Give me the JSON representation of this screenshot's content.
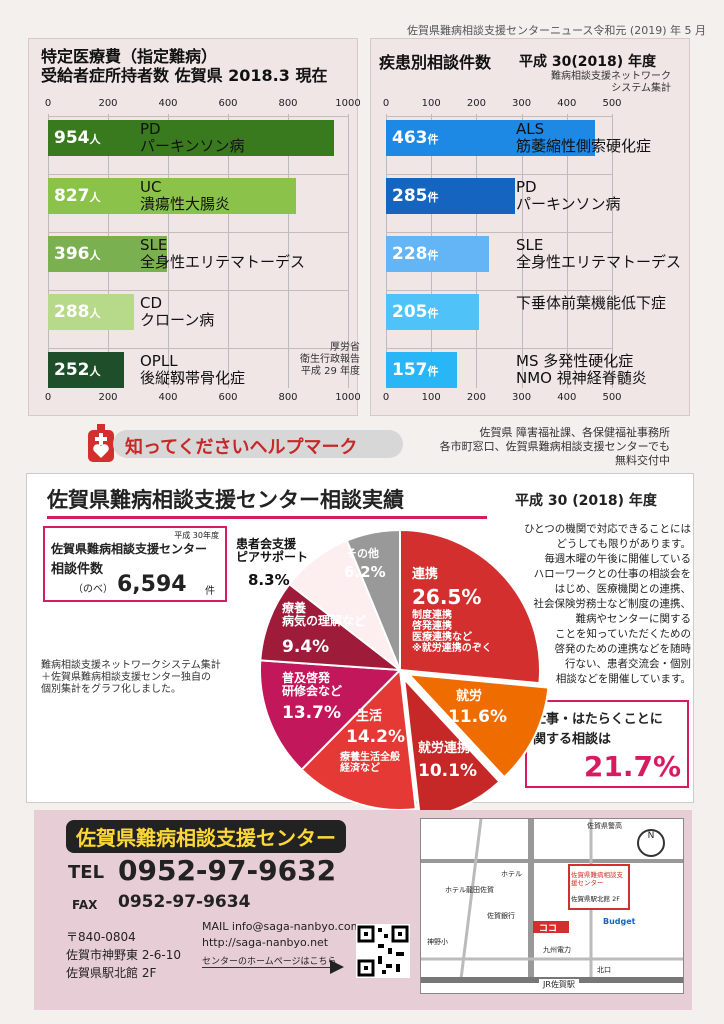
{
  "header": {
    "newsletter": "佐賀県難病相談支援センターニュース令和元 (2019) 年 5 月"
  },
  "left_chart": {
    "title_line1": "特定医療費（指定難病）",
    "title_line2": "受給者症所持者数 佐賀県 2018.3 現在",
    "source": [
      "厚労省",
      "衛生行政報告",
      "平成 29 年度"
    ],
    "unit": "人",
    "ticks": [
      "0",
      "200",
      "400",
      "600",
      "800",
      "1000"
    ],
    "max": 1000,
    "colors": [
      "#3a7a1e",
      "#8bc34a",
      "#7bb050",
      "#b7d98a",
      "#1f4f2a"
    ]
  },
  "right_chart": {
    "title": "疾患別相談件数",
    "subtitle": "平成 30(2018) 年度",
    "source": [
      "難病相談支援ネットワーク",
      "システム集計"
    ],
    "unit": "件",
    "ticks": [
      "0",
      "100",
      "200",
      "300",
      "400",
      "500"
    ],
    "max": 500,
    "colors": [
      "#1e88e5",
      "#1565c0",
      "#64b5f6",
      "#4fc3f7",
      "#29b6f6"
    ]
  },
  "chart_data": [
    {
      "type": "bar",
      "title": "特定医療費（指定難病）受給者症所持者数",
      "categories": [
        "PD パーキンソン病",
        "UC 潰瘍性大腸炎",
        "SLE 全身性エリテマトーデス",
        "CD クローン病",
        "OPLL 後縦靱帯骨化症"
      ],
      "labels_abbr": [
        "PD",
        "UC",
        "SLE",
        "CD",
        "OPLL"
      ],
      "labels_full": [
        "パーキンソン病",
        "潰瘍性大腸炎",
        "全身性エリテマトーデス",
        "クローン病",
        "後縦靱帯骨化症"
      ],
      "values": [
        954,
        827,
        396,
        288,
        252
      ],
      "xlim": [
        0,
        1000
      ]
    },
    {
      "type": "bar",
      "title": "疾患別相談件数",
      "categories": [
        "ALS 筋萎縮性側索硬化症",
        "PD パーキンソン病",
        "SLE 全身性エリテマトーデス",
        "下垂体前葉機能低下症",
        "MS 多発性硬化症 NMO 視神経脊髄炎"
      ],
      "labels_line1": [
        "ALS",
        "PD",
        "SLE",
        "下垂体前葉機能低下症",
        "MS 多発性硬化症"
      ],
      "labels_line2": [
        "筋萎縮性側索硬化症",
        "パーキンソン病",
        "全身性エリテマトーデス",
        "",
        "NMO 視神経脊髄炎"
      ],
      "values": [
        463,
        285,
        228,
        205,
        157
      ],
      "xlim": [
        0,
        500
      ]
    },
    {
      "type": "pie",
      "title": "佐賀県難病相談支援センター相談実績",
      "categories": [
        "連携",
        "就労",
        "就労連携",
        "生活",
        "普及啓発 研修会など",
        "療養 病気の理解など",
        "患者会支援 ピアサポート",
        "その他"
      ],
      "values": [
        26.5,
        11.6,
        10.1,
        14.2,
        13.7,
        9.4,
        8.3,
        6.2
      ]
    }
  ],
  "help_mark": {
    "title": "知ってくださいヘルプマーク",
    "info": [
      "佐賀県 障害福祉課、各保健福祉事務所",
      "各市町窓口、佐賀県難病相談支援センターでも",
      "無料交付中"
    ]
  },
  "results": {
    "title": "佐賀県難病相談支援センター相談実績",
    "year": "平成 30 (2018) 年度",
    "box_year": "平成 30年度",
    "box_line1": "佐賀県難病相談支援センター",
    "box_line2": "相談件数",
    "box_prefix": "（のべ）",
    "box_count": "6,594",
    "box_unit": "件",
    "note": [
      "難病相談支援ネットワークシステム集計",
      "＋佐賀県難病相談支援センター独自の",
      "個別集計をグラフ化しました。"
    ],
    "desc": [
      "ひとつの機関で対応できることには",
      "どうしても限りがあります。",
      "毎週木曜の午後に開催している",
      "ハローワークとの仕事の相談会を",
      "はじめ、医療機関との連携、",
      "社会保険労務士など制度の連携、",
      "難病やセンターに関する",
      "ことを知っていただくための",
      "啓発のための連携などを随時",
      "行ない、患者交流会・個別",
      "相談などを開催しています。"
    ],
    "work_line1": "仕事・はたらくことに",
    "work_line2": "関する相談は",
    "work_pct": "21.7%",
    "pie_labels": {
      "renkei": "連携",
      "renkei_pct": "26.5%",
      "renkei_sub": [
        "制度連携",
        "啓発連携",
        "医療連携など",
        "※就労連携のぞく"
      ],
      "shuro": "就労",
      "shuro_pct": "11.6%",
      "shurorenkei": "就労連携",
      "shurorenkei_pct": "10.1%",
      "seikatsu": "生活",
      "seikatsu_pct": "14.2%",
      "seikatsu_sub": [
        "療養生活全般",
        "経済など"
      ],
      "fukyu": [
        "普及啓発",
        "研修会など"
      ],
      "fukyu_pct": "13.7%",
      "ryoyo": [
        "療養",
        "病気の理解など"
      ],
      "ryoyo_pct": "9.4%",
      "kanja": [
        "患者会支援",
        "ピアサポート"
      ],
      "kanja_pct": "8.3%",
      "sonota": "その他",
      "sonota_pct": "6.2%"
    }
  },
  "contact": {
    "name": "佐賀県難病相談支援センター",
    "tel_label": "TEL",
    "tel": "0952-97-9632",
    "fax_label": "FAX",
    "fax": "0952-97-9634",
    "postal": "〒840-0804",
    "address1": "佐賀市神野東 2-6-10",
    "address2": "佐賀県駅北館 2F",
    "mail": "MAIL info@saga-nanbyo.com",
    "url": "http://saga-nanbyo.net",
    "homepage_note": "センターのホームページはこちら"
  },
  "map": {
    "labels": [
      "佐賀県警高",
      "佐賀県難病相談支援センター",
      "佐賀県駅北館 2F",
      "ホテル",
      "ホテル龍田佐賀",
      "佐賀銀行",
      "ココ",
      "九州電力",
      "Budget",
      "神野小",
      "北口",
      "JR佐賀駅",
      "N"
    ]
  }
}
